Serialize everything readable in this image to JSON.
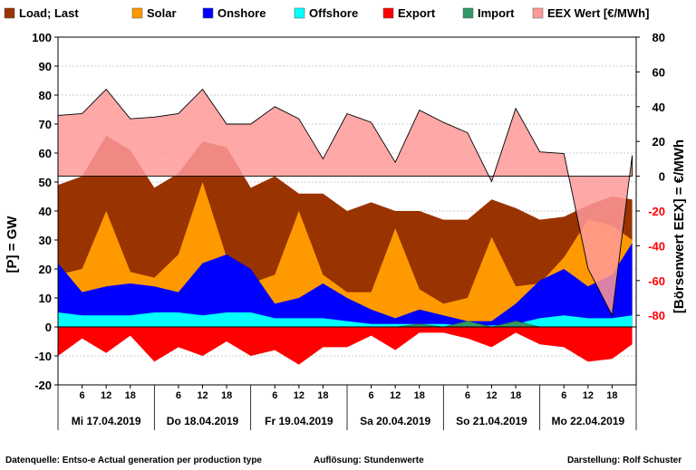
{
  "chart_data": {
    "type": "area",
    "legend": [
      {
        "key": "load",
        "label": "Load; Last",
        "color": "#993300"
      },
      {
        "key": "solar",
        "label": "Solar",
        "color": "#ff9900"
      },
      {
        "key": "onshore",
        "label": "Onshore",
        "color": "#0000ff"
      },
      {
        "key": "offshore",
        "label": "Offshore",
        "color": "#00ffff"
      },
      {
        "key": "export",
        "label": "Export",
        "color": "#ff0000"
      },
      {
        "key": "import",
        "label": "Import",
        "color": "#339966"
      },
      {
        "key": "eex",
        "label": "EEX Wert [€/MWh]",
        "color": "#ff9999"
      }
    ],
    "ylabel_left": "[P] = GW",
    "ylabel_right": "[Börsenwert EEX] = €/MWh",
    "ylim_left": [
      -20,
      100
    ],
    "ylim_right": [
      -120,
      80
    ],
    "yticks_left": [
      100,
      90,
      80,
      70,
      60,
      50,
      40,
      30,
      20,
      10,
      0,
      -10,
      -20
    ],
    "yticks_right": [
      80,
      60,
      40,
      20,
      0,
      -20,
      -40,
      -60,
      -80
    ],
    "hour_ticks": [
      "6",
      "12",
      "18"
    ],
    "days": [
      "Mi 17.04.2019",
      "Do 18.04.2019",
      "Fr 19.04.2019",
      "Sa 20.04.2019",
      "So 21.04.2019",
      "Mo 22.04.2019"
    ],
    "hours_per_day": 24,
    "series_sample_hours": [
      0,
      6,
      12,
      18,
      24,
      30,
      36,
      42,
      48,
      54,
      60,
      66,
      72,
      78,
      84,
      90,
      96,
      102,
      108,
      114,
      120,
      126,
      132,
      138,
      143
    ],
    "series": [
      {
        "name": "Load; Last",
        "values": [
          49,
          52,
          66,
          61,
          48,
          53,
          64,
          62,
          48,
          52,
          46,
          46,
          40,
          43,
          40,
          40,
          37,
          37,
          44,
          41,
          37,
          38,
          42,
          45,
          44
        ]
      },
      {
        "name": "Solar",
        "values": [
          18,
          20,
          40,
          19,
          17,
          25,
          50,
          24,
          15,
          18,
          40,
          18,
          12,
          12,
          34,
          13,
          8,
          10,
          31,
          14,
          15,
          24,
          37,
          35,
          30
        ]
      },
      {
        "name": "Onshore",
        "values": [
          22,
          12,
          14,
          15,
          14,
          12,
          22,
          25,
          20,
          8,
          10,
          15,
          10,
          6,
          3,
          6,
          4,
          2,
          2,
          8,
          16,
          20,
          14,
          18,
          29
        ]
      },
      {
        "name": "Offshore",
        "values": [
          5,
          4,
          4,
          4,
          5,
          5,
          4,
          5,
          5,
          3,
          3,
          3,
          2,
          1,
          1,
          1,
          1,
          0.5,
          0.5,
          1,
          3,
          4,
          3,
          3,
          4
        ]
      },
      {
        "name": "Export",
        "values": [
          -10,
          -4,
          -9,
          -3,
          -12,
          -7,
          -10,
          -5,
          -10,
          -8,
          -13,
          -7,
          -7,
          -3,
          -8,
          -2,
          -2,
          -4,
          -7,
          -2,
          -6,
          -7,
          -12,
          -11,
          -6
        ]
      },
      {
        "name": "Import",
        "values": [
          0,
          0,
          0,
          0,
          0,
          0,
          0,
          0,
          0,
          0,
          0,
          0,
          0,
          0,
          0,
          1,
          0,
          2,
          0,
          2,
          0,
          0,
          0,
          0,
          0
        ]
      },
      {
        "name": "EEX Wert [€/MWh]",
        "values": [
          35,
          36,
          50,
          33,
          34,
          36,
          50,
          30,
          30,
          40,
          33,
          10,
          36,
          31,
          8,
          38,
          31,
          25,
          -3,
          39,
          14,
          13,
          -53,
          -80,
          12
        ]
      }
    ]
  },
  "footer": {
    "source": "Datenquelle: Entso-e  Actual generation per production type",
    "resolution": "Auflösung: Stundenwerte",
    "author": "Darstellung:  Rolf Schuster"
  }
}
